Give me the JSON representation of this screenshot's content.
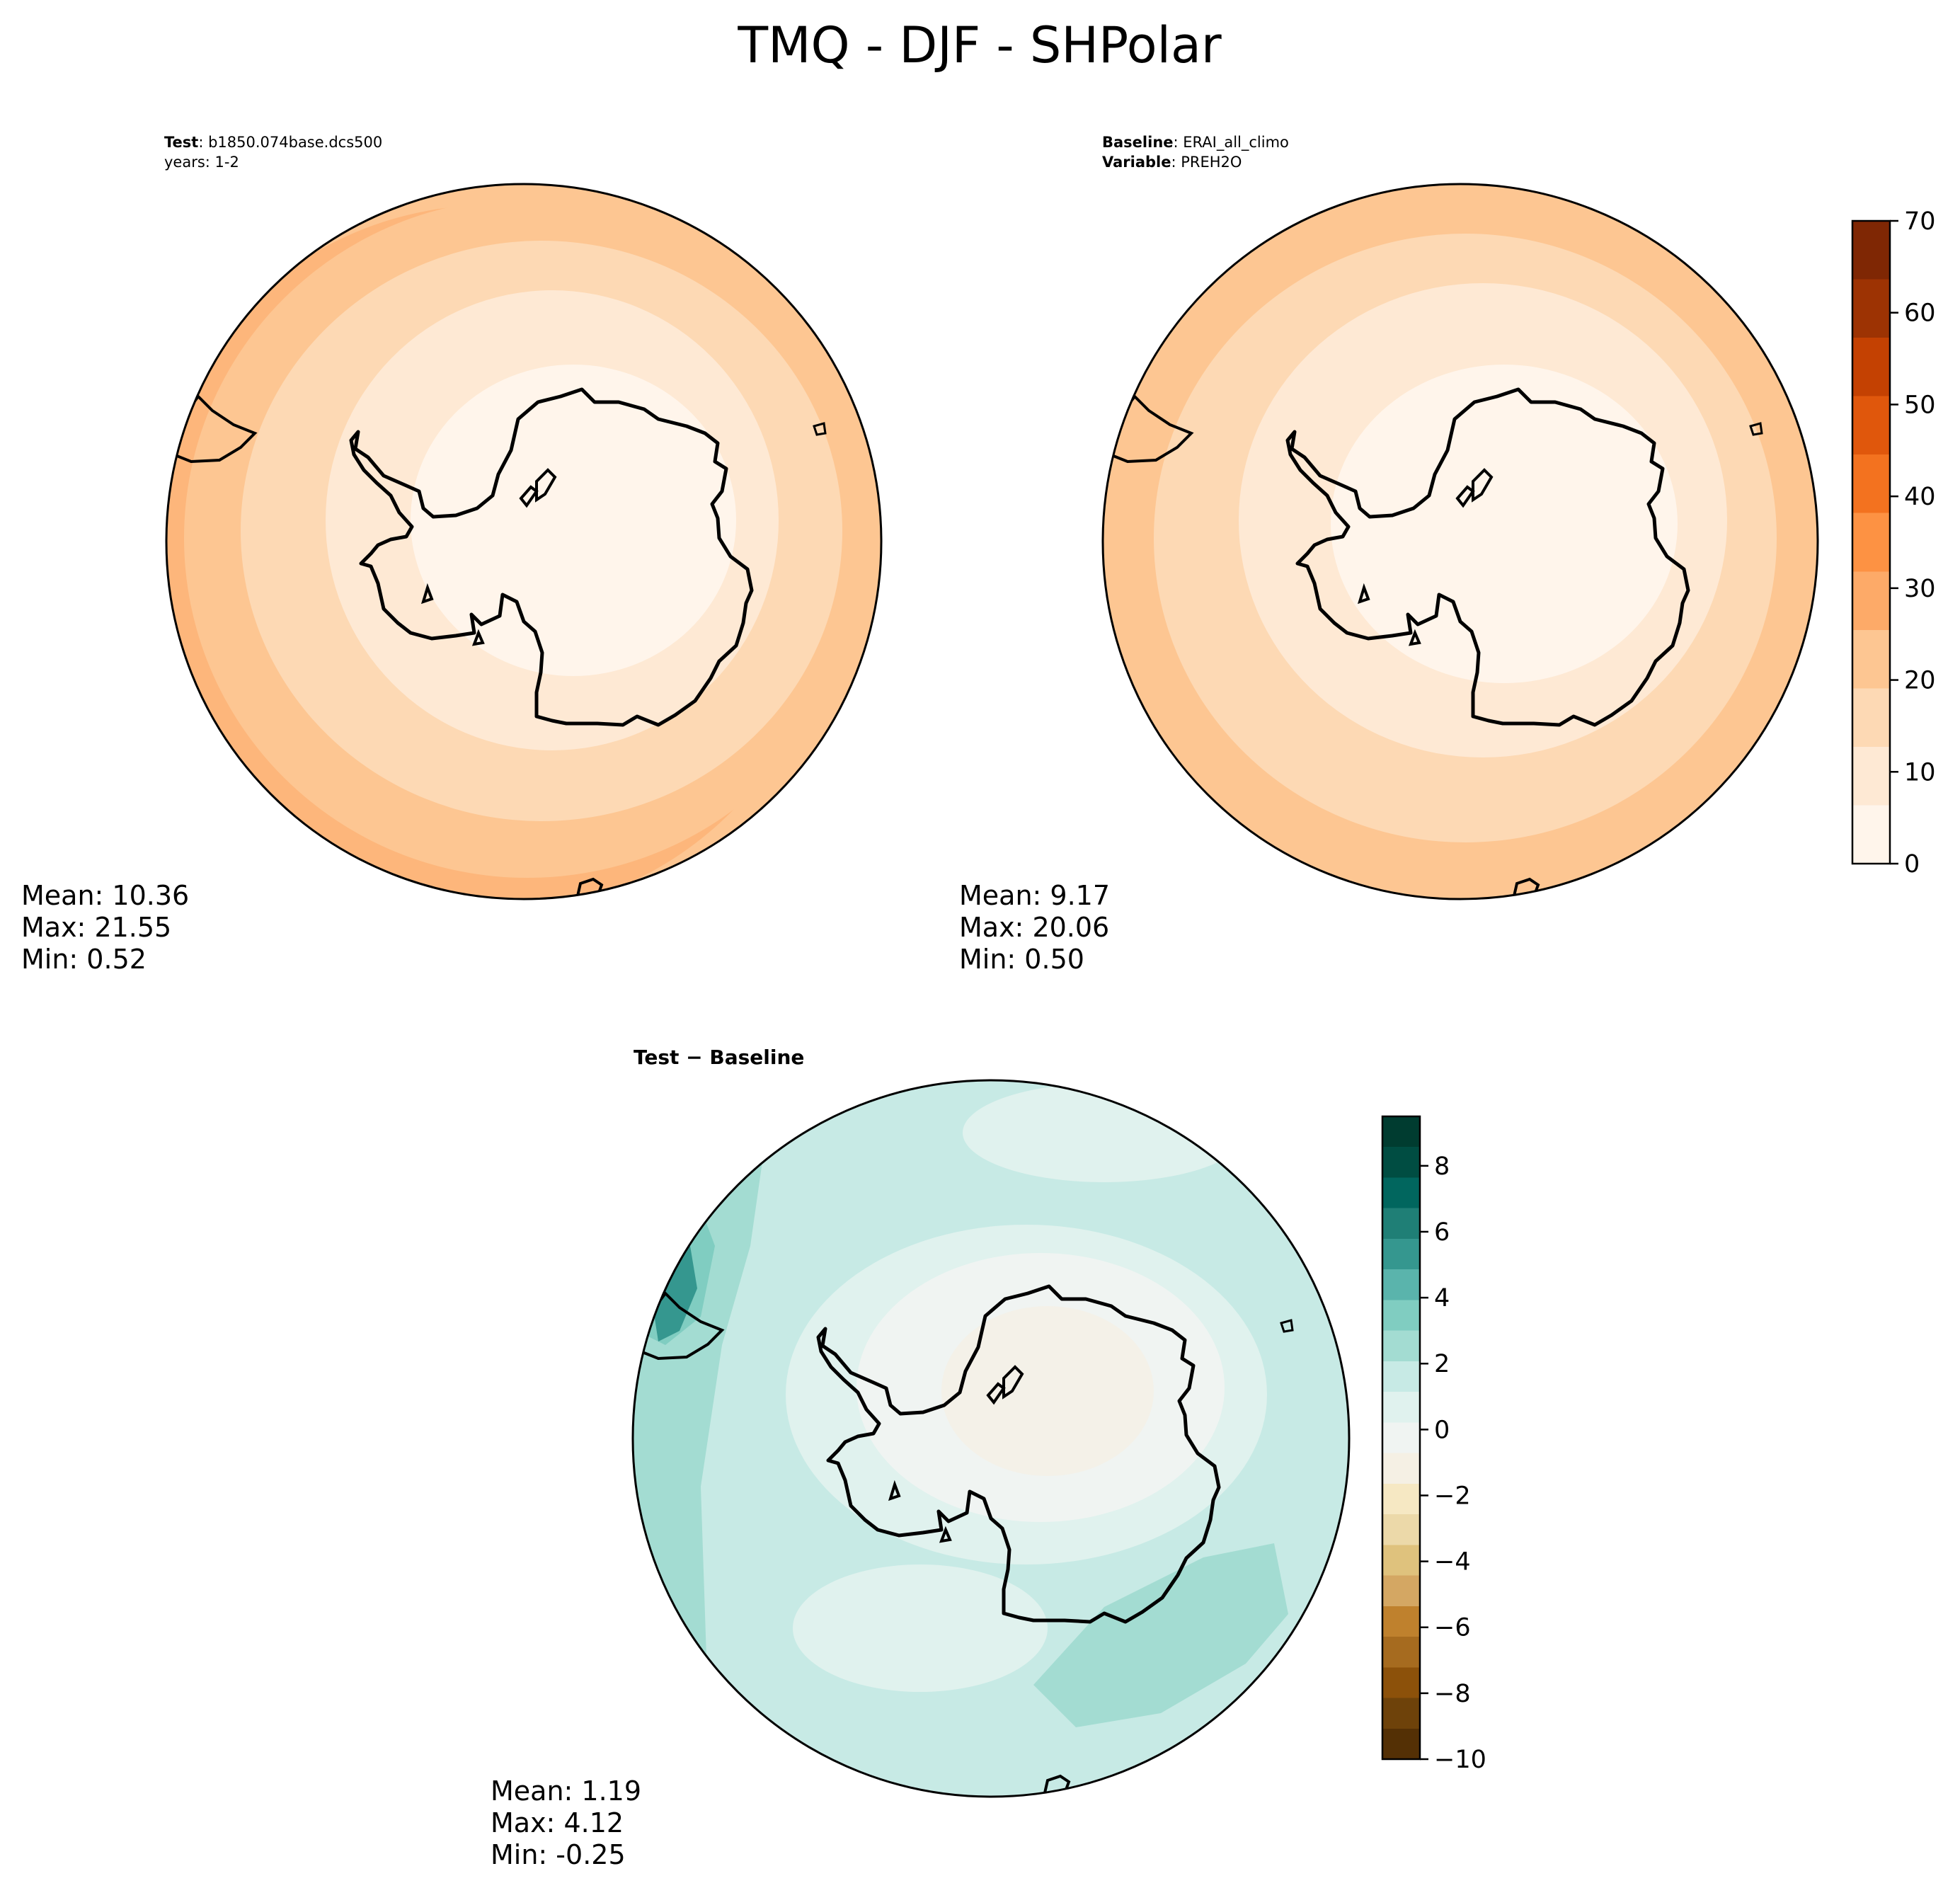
{
  "figure": {
    "title": "TMQ - DJF - SHPolar"
  },
  "panels": {
    "test": {
      "label_bold": "Test",
      "label_rest": ": b1850.074base.dcs500",
      "years": "years: 1-2",
      "stats": {
        "mean": "Mean: 10.36",
        "max": "Max: 21.55",
        "min": "Min:  0.52"
      }
    },
    "baseline": {
      "label_bold": "Baseline",
      "label_rest": ": ERAI_all_climo",
      "variable_bold": "Variable",
      "variable_rest": ": PREH2O",
      "stats": {
        "mean": "Mean:  9.17",
        "max": "Max: 20.06",
        "min": "Min:  0.50"
      }
    },
    "diff": {
      "title": "Test − Baseline",
      "stats": {
        "mean": "Mean:  1.19",
        "max": "Max:  4.12",
        "min": "Min: -0.25"
      }
    }
  },
  "colorbars": {
    "main": {
      "ticks": [
        "0",
        "10",
        "20",
        "30",
        "40",
        "50",
        "60",
        "70"
      ],
      "colors": [
        "#fff5eb",
        "#fee9d4",
        "#fdd9b4",
        "#fdc692",
        "#fdaa68",
        "#fd9243",
        "#f3721f",
        "#e0570c",
        "#c44102",
        "#9d3303",
        "#7f2704"
      ]
    },
    "diff": {
      "ticks": [
        "8",
        "6",
        "4",
        "2",
        "0",
        "−2",
        "−4",
        "−6",
        "−8",
        "−10"
      ],
      "colors": [
        "#543005",
        "#6e420a",
        "#8c510a",
        "#a66b1f",
        "#bf812d",
        "#d4a763",
        "#dfc27d",
        "#ecd9a9",
        "#f6e8c3",
        "#f5f0e4",
        "#f0f4f2",
        "#e0f2ee",
        "#c7eae5",
        "#a3dcd2",
        "#80cdc1",
        "#5ab4ac",
        "#35978f",
        "#1f7f76",
        "#01665e",
        "#004d42",
        "#003c30"
      ]
    }
  },
  "colors": {
    "land_outline": "#000000",
    "frame": "#000000"
  }
}
